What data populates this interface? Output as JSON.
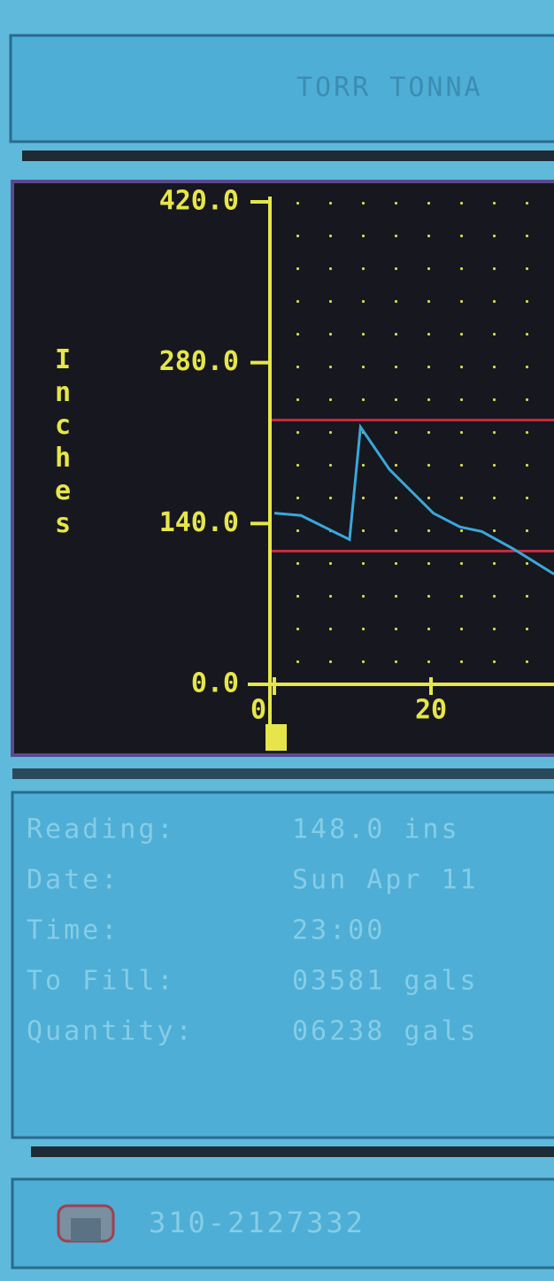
{
  "header": {
    "title": "TORR TONNA"
  },
  "chart_data": {
    "type": "line",
    "y_label": "Inches",
    "xlim": [
      0,
      36
    ],
    "xticks": [
      0,
      20
    ],
    "ylim": [
      0,
      420
    ],
    "yticks": [
      {
        "value": 0,
        "label": "0.0"
      },
      {
        "value": 140,
        "label": "140.0"
      },
      {
        "value": 280,
        "label": "280.0"
      },
      {
        "value": 420,
        "label": "420.0"
      }
    ],
    "grid": true,
    "reference_lines": {
      "values": [
        230,
        116
      ],
      "color": "#c8283c"
    },
    "x": [
      0,
      3.4,
      9.6,
      11,
      14.7,
      20.3,
      23.7,
      26.5,
      30.5,
      35.7
    ],
    "series": [
      {
        "color": "#3aa8d8",
        "values": [
          149,
          147,
          126,
          224,
          187,
          149,
          137,
          133,
          118,
          96
        ]
      }
    ]
  },
  "info": {
    "rows": [
      [
        "Reading:",
        "148.0 ins"
      ],
      [
        "Date:",
        "Sun Apr 11"
      ],
      [
        "Time:",
        "23:00"
      ],
      [
        "To Fill:",
        "03581 gals"
      ],
      [
        "Quantity:",
        "06238 gals"
      ]
    ]
  },
  "footer": {
    "phone": "310-2127332"
  }
}
